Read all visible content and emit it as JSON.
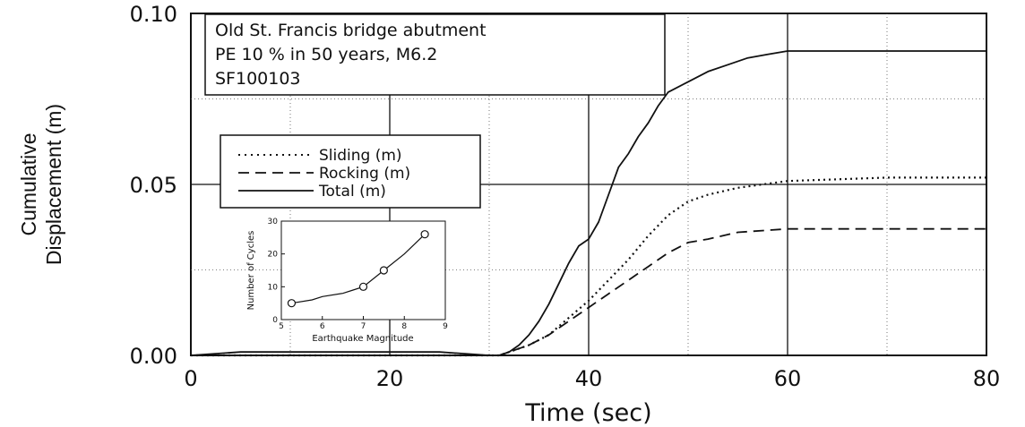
{
  "chart_data": {
    "type": "line",
    "xlabel": "Time (sec)",
    "ylabel_line1": "Cumulative",
    "ylabel_line2": "Displacement (m)",
    "xlim": [
      0,
      80
    ],
    "ylim": [
      0,
      0.1
    ],
    "x_ticks": [
      "0",
      "20",
      "40",
      "60",
      "80"
    ],
    "y_ticks": [
      "0.00",
      "0.05",
      "0.10"
    ],
    "grid": true,
    "annotation": {
      "line1": "Old St. Francis bridge abutment",
      "line2": "PE 10 % in 50 years, M6.2",
      "line3": "SF100103"
    },
    "legend_position": "upper-left",
    "series": [
      {
        "name": "Sliding (m)",
        "style": "dotted",
        "x": [
          0,
          5,
          25,
          30,
          31,
          32,
          34,
          36,
          38,
          40,
          42,
          44,
          46,
          48,
          50,
          52,
          55,
          60,
          70,
          80
        ],
        "y": [
          0,
          0,
          0,
          0,
          0,
          0.001,
          0.003,
          0.006,
          0.011,
          0.016,
          0.022,
          0.028,
          0.035,
          0.041,
          0.045,
          0.047,
          0.049,
          0.051,
          0.052,
          0.052
        ]
      },
      {
        "name": "Rocking (m)",
        "style": "dashed",
        "x": [
          0,
          5,
          25,
          30,
          31,
          32,
          34,
          36,
          38,
          40,
          42,
          44,
          46,
          48,
          50,
          52,
          55,
          60,
          70,
          80
        ],
        "y": [
          0,
          0,
          0,
          0,
          0,
          0.001,
          0.003,
          0.006,
          0.01,
          0.014,
          0.018,
          0.022,
          0.026,
          0.03,
          0.033,
          0.034,
          0.036,
          0.037,
          0.037,
          0.037
        ]
      },
      {
        "name": "Total (m)",
        "style": "solid",
        "x": [
          0,
          5,
          25,
          30,
          31,
          32,
          33,
          34,
          35,
          36,
          37,
          38,
          39,
          40,
          41,
          42,
          43,
          44,
          45,
          46,
          47,
          48,
          50,
          52,
          54,
          56,
          58,
          60,
          70,
          80
        ],
        "y": [
          0,
          0.001,
          0.001,
          0,
          0,
          0.001,
          0.003,
          0.006,
          0.01,
          0.015,
          0.021,
          0.027,
          0.032,
          0.034,
          0.039,
          0.047,
          0.055,
          0.059,
          0.064,
          0.068,
          0.073,
          0.077,
          0.08,
          0.083,
          0.085,
          0.087,
          0.088,
          0.089,
          0.089,
          0.089
        ]
      }
    ],
    "inset": {
      "type": "line",
      "xlabel": "Earthquake Magnitude",
      "ylabel": "Number of Cycles",
      "xlim": [
        5,
        9
      ],
      "ylim": [
        0,
        30
      ],
      "x_ticks": [
        "5",
        "6",
        "7",
        "8",
        "9"
      ],
      "y_ticks": [
        "0",
        "10",
        "20",
        "30"
      ],
      "x": [
        5.25,
        5.75,
        6.0,
        6.5,
        6.75,
        7.0,
        7.5,
        8.0,
        8.5
      ],
      "y": [
        5,
        6,
        7,
        8,
        9,
        10,
        15,
        20,
        26
      ],
      "marker_x": [
        5.25,
        7.0,
        7.5,
        8.5
      ],
      "marker_y": [
        5,
        10,
        15,
        26
      ]
    }
  }
}
